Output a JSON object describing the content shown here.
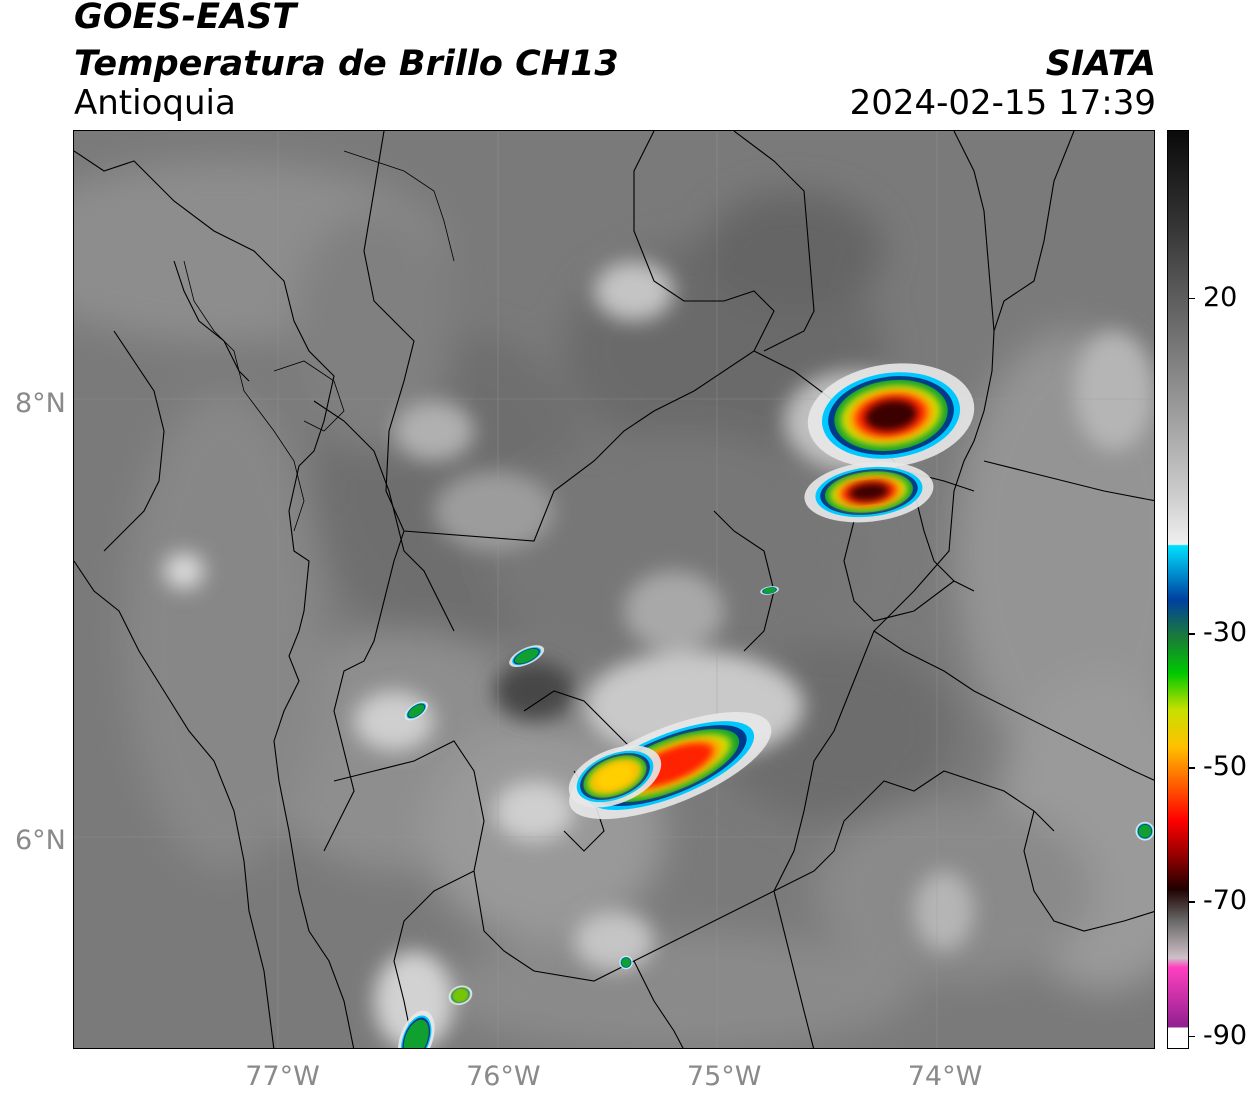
{
  "header": {
    "title_line1": "GOES-EAST",
    "title_line2": "Temperatura de Brillo CH13",
    "region": "Antioquia",
    "organization": "SIATA",
    "datetime": "2024-02-15 17:39"
  },
  "map": {
    "lon_labels": [
      "77°W",
      "76°W",
      "75°W",
      "74°W"
    ],
    "lat_labels": [
      "8°N",
      "6°N"
    ],
    "lon_range": [
      -77.95,
      -73.05
    ],
    "lat_range": [
      5.05,
      9.25
    ]
  },
  "colorbar": {
    "tick_labels": [
      "20",
      "-30",
      "-50",
      "-70",
      "-90"
    ],
    "tick_values": [
      20,
      -30,
      -50,
      -70,
      -90
    ],
    "range": [
      -92,
      45
    ]
  },
  "cold_cloud_tops": [
    {
      "lon": -74.25,
      "lat": 7.95,
      "min_temp": -68
    },
    {
      "lon": -74.35,
      "lat": 7.6,
      "min_temp": -70
    },
    {
      "lon": -75.25,
      "lat": 6.35,
      "min_temp": -60
    },
    {
      "lon": -75.5,
      "lat": 6.3,
      "min_temp": -45
    },
    {
      "lon": -75.9,
      "lat": 6.85,
      "min_temp": -38
    },
    {
      "lon": -76.4,
      "lat": 6.6,
      "min_temp": -35
    },
    {
      "lon": -74.8,
      "lat": 7.15,
      "min_temp": -32
    },
    {
      "lon": -73.1,
      "lat": 6.05,
      "min_temp": -38
    },
    {
      "lon": -76.2,
      "lat": 5.3,
      "min_temp": -40
    },
    {
      "lon": -75.45,
      "lat": 5.45,
      "min_temp": -32
    },
    {
      "lon": -76.4,
      "lat": 5.1,
      "min_temp": -35
    }
  ]
}
